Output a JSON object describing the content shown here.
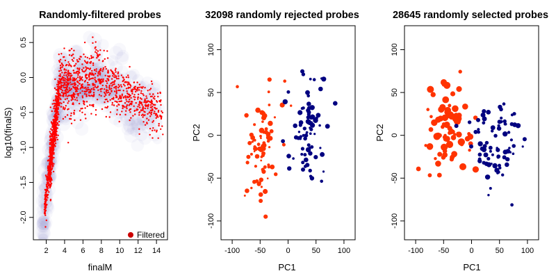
{
  "chart_data": [
    {
      "type": "scatter",
      "title": "Randomly-filtered probes",
      "xlabel": "finalM",
      "ylabel": "log10(finalS)",
      "xlim": [
        0.6,
        15.2
      ],
      "ylim": [
        -2.32,
        0.74
      ],
      "xticks": [
        2,
        4,
        6,
        8,
        10,
        12,
        14
      ],
      "yticks": [
        -2.0,
        -1.5,
        -1.0,
        -0.5,
        0.0,
        0.5
      ],
      "ytick_labels": [
        "-2.0",
        "-1.5",
        "-1.0",
        "-0.5",
        "0.0",
        "0.5"
      ],
      "background": "smoothed density (blue)",
      "series": [
        {
          "name": "Filtered",
          "color": "#ff0000",
          "n_points": 1600
        }
      ],
      "legend": {
        "position": "bottom-right",
        "entries": [
          "Filtered"
        ]
      }
    },
    {
      "type": "scatter",
      "title": "32098 randomly rejected probes",
      "xlabel": "PC1",
      "ylabel": "PC2",
      "xlim": [
        -120,
        120
      ],
      "ylim": [
        -122,
        128
      ],
      "xticks": [
        -100,
        -50,
        0,
        50,
        100
      ],
      "yticks": [
        -100,
        -50,
        0,
        50,
        100
      ],
      "series": [
        {
          "color": "#ff3300",
          "n_points": 80
        },
        {
          "color": "#000080",
          "n_points": 80
        }
      ]
    },
    {
      "type": "scatter",
      "title": "28645 randomly selected probes",
      "xlabel": "PC1",
      "ylabel": "PC2",
      "xlim": [
        -120,
        120
      ],
      "ylim": [
        -122,
        128
      ],
      "xticks": [
        -100,
        -50,
        0,
        50,
        100
      ],
      "yticks": [
        -100,
        -50,
        0,
        50,
        100
      ],
      "series": [
        {
          "color": "#ff3300",
          "n_points": 80
        },
        {
          "color": "#000080",
          "n_points": 80
        }
      ]
    }
  ],
  "colors": {
    "filtered": "#ff0000",
    "group_a": "#ff3300",
    "group_b": "#000080",
    "density": "#5a64b4"
  }
}
